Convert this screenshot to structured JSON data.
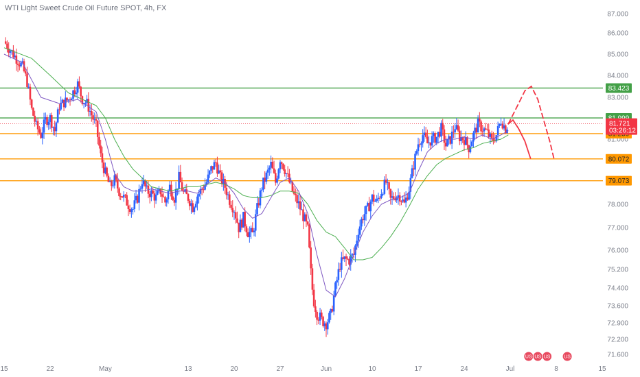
{
  "header": {
    "title": "WTI Light Sweet Crude Oil Future SPOT, 4h, FX"
  },
  "chart_data": {
    "type": "candlestick",
    "title": "WTI Light Sweet Crude Oil Future SPOT, 4h, FX",
    "ylim": [
      71.2,
      87.35
    ],
    "grid": false,
    "y_ticks": [
      "87.000",
      "86.000",
      "85.000",
      "84.000",
      "83.000",
      "82.000",
      "81.000",
      "80.000",
      "79.000",
      "78.000",
      "77.000",
      "76.000",
      "75.200",
      "74.400",
      "73.600",
      "72.900",
      "72.200",
      "71.600"
    ],
    "y_tick_values": [
      87.0,
      86.0,
      85.0,
      84.0,
      83.0,
      82.0,
      81.0,
      80.0,
      79.0,
      78.0,
      77.0,
      76.0,
      75.2,
      74.4,
      73.6,
      72.9,
      72.2,
      71.6
    ],
    "x_ticks": [
      {
        "label": "15",
        "x": 0
      },
      {
        "label": "22",
        "x": 5
      },
      {
        "label": "May",
        "x": 11
      },
      {
        "label": "13",
        "x": 20
      },
      {
        "label": "20",
        "x": 25
      },
      {
        "label": "27",
        "x": 30
      },
      {
        "label": "Jun",
        "x": 35
      },
      {
        "label": "10",
        "x": 40
      },
      {
        "label": "17",
        "x": 45
      },
      {
        "label": "24",
        "x": 50
      },
      {
        "label": "Jul",
        "x": 55
      },
      {
        "label": "8",
        "x": 60
      },
      {
        "label": "15",
        "x": 65
      }
    ],
    "colors": {
      "up": "#2962ff",
      "down": "#f23645",
      "ma_fast": "#7e57c2",
      "ma_slow": "#4caf50",
      "support": "#ff9800",
      "resistance": "#43a047",
      "projection": "#f23645"
    },
    "levels": [
      {
        "name": "resistance-high",
        "value": 83.423,
        "label": "83.423",
        "color": "#43a047"
      },
      {
        "name": "resistance-low",
        "value": 81.999,
        "label": "81.999",
        "color": "#43a047"
      },
      {
        "name": "support-1",
        "value": 81.259,
        "label": "81.259",
        "color": "#ff9800"
      },
      {
        "name": "support-2",
        "value": 80.072,
        "label": "80.072",
        "color": "#ff9800"
      },
      {
        "name": "support-3",
        "value": 79.073,
        "label": "79.073",
        "color": "#ff9800"
      }
    ],
    "current_price": {
      "value": 81.721,
      "label": "81.721",
      "countdown": "03:26:12"
    },
    "price_path": [
      [
        0,
        85.6
      ],
      [
        1,
        85.0
      ],
      [
        2,
        84.4
      ],
      [
        2.5,
        83.7
      ],
      [
        3,
        82.4
      ],
      [
        3.5,
        81.6
      ],
      [
        4,
        81.2
      ],
      [
        4.5,
        81.9
      ],
      [
        5,
        82.0
      ],
      [
        5.5,
        81.4
      ],
      [
        6,
        82.6
      ],
      [
        7,
        82.9
      ],
      [
        8,
        83.6
      ],
      [
        8.5,
        82.9
      ],
      [
        9,
        82.7
      ],
      [
        10,
        81.6
      ],
      [
        10.5,
        80.2
      ],
      [
        11,
        79.4
      ],
      [
        11.5,
        78.8
      ],
      [
        12,
        79.1
      ],
      [
        12.5,
        78.6
      ],
      [
        13,
        78.3
      ],
      [
        13.5,
        78.0
      ],
      [
        14,
        77.8
      ],
      [
        14.5,
        78.3
      ],
      [
        15,
        79.1
      ],
      [
        15.5,
        78.6
      ],
      [
        16,
        78.5
      ],
      [
        16.5,
        78.3
      ],
      [
        17,
        78.6
      ],
      [
        17.5,
        78.1
      ],
      [
        18,
        78.8
      ],
      [
        18.5,
        78.3
      ],
      [
        19,
        79.2
      ],
      [
        19.5,
        78.5
      ],
      [
        20,
        78.3
      ],
      [
        20.5,
        77.9
      ],
      [
        21,
        78.4
      ],
      [
        22,
        79.0
      ],
      [
        22.5,
        79.6
      ],
      [
        23,
        79.9
      ],
      [
        23.5,
        79.2
      ],
      [
        24,
        78.8
      ],
      [
        24.5,
        78.2
      ],
      [
        25,
        77.8
      ],
      [
        25.5,
        77.0
      ],
      [
        26,
        77.4
      ],
      [
        26.5,
        76.8
      ],
      [
        27,
        76.7
      ],
      [
        27.5,
        77.8
      ],
      [
        28,
        78.8
      ],
      [
        28.5,
        79.3
      ],
      [
        29,
        79.8
      ],
      [
        29.5,
        79.0
      ],
      [
        30,
        80.1
      ],
      [
        30.5,
        79.6
      ],
      [
        31,
        79.0
      ],
      [
        31.5,
        78.4
      ],
      [
        32,
        78.0
      ],
      [
        32.5,
        77.5
      ],
      [
        33,
        76.9
      ],
      [
        33.3,
        75.2
      ],
      [
        33.6,
        73.9
      ],
      [
        34,
        73.3
      ],
      [
        34.5,
        73.0
      ],
      [
        35,
        72.9
      ],
      [
        35.5,
        73.2
      ],
      [
        36,
        74.4
      ],
      [
        36.5,
        75.4
      ],
      [
        37,
        75.6
      ],
      [
        37.5,
        75.6
      ],
      [
        38,
        75.8
      ],
      [
        38.5,
        76.9
      ],
      [
        39,
        77.5
      ],
      [
        39.5,
        77.8
      ],
      [
        40,
        78.3
      ],
      [
        40.5,
        78.1
      ],
      [
        41,
        78.6
      ],
      [
        41.5,
        79.0
      ],
      [
        42,
        78.2
      ],
      [
        42.5,
        78.4
      ],
      [
        43,
        78.4
      ],
      [
        43.5,
        78.0
      ],
      [
        44,
        78.7
      ],
      [
        44.5,
        79.8
      ],
      [
        45,
        80.8
      ],
      [
        45.5,
        81.2
      ],
      [
        46,
        80.8
      ],
      [
        46.5,
        81.0
      ],
      [
        47,
        81.1
      ],
      [
        47.5,
        81.5
      ],
      [
        48,
        80.7
      ],
      [
        48.5,
        81.0
      ],
      [
        49,
        81.6
      ],
      [
        49.5,
        81.1
      ],
      [
        50,
        81.0
      ],
      [
        50.5,
        80.6
      ],
      [
        51,
        81.2
      ],
      [
        51.5,
        81.7
      ],
      [
        52,
        81.5
      ],
      [
        52.5,
        81.3
      ],
      [
        53,
        80.9
      ],
      [
        53.5,
        81.2
      ],
      [
        54,
        81.9
      ],
      [
        54.5,
        81.5
      ],
      [
        54.8,
        81.72
      ]
    ],
    "ma_fast": [
      [
        0,
        85.0
      ],
      [
        2,
        84.6
      ],
      [
        4,
        83.0
      ],
      [
        6,
        82.7
      ],
      [
        8,
        82.9
      ],
      [
        10,
        82.3
      ],
      [
        11,
        81.0
      ],
      [
        12,
        79.4
      ],
      [
        13,
        78.8
      ],
      [
        14,
        78.6
      ],
      [
        15,
        78.6
      ],
      [
        16,
        78.7
      ],
      [
        17,
        78.6
      ],
      [
        18,
        78.5
      ],
      [
        19,
        78.6
      ],
      [
        20,
        78.6
      ],
      [
        21,
        78.5
      ],
      [
        22,
        78.9
      ],
      [
        23,
        79.2
      ],
      [
        24,
        79.0
      ],
      [
        25,
        78.5
      ],
      [
        26,
        77.8
      ],
      [
        27,
        77.4
      ],
      [
        28,
        77.6
      ],
      [
        29,
        78.3
      ],
      [
        30,
        79.0
      ],
      [
        31,
        79.2
      ],
      [
        32,
        78.6
      ],
      [
        33,
        77.6
      ],
      [
        34,
        75.8
      ],
      [
        35,
        74.3
      ],
      [
        36,
        74.0
      ],
      [
        37,
        74.8
      ],
      [
        38,
        75.8
      ],
      [
        39,
        76.8
      ],
      [
        40,
        77.5
      ],
      [
        41,
        78.0
      ],
      [
        42,
        78.2
      ],
      [
        43,
        78.3
      ],
      [
        44,
        78.5
      ],
      [
        45,
        79.5
      ],
      [
        46,
        80.4
      ],
      [
        47,
        80.8
      ],
      [
        48,
        81.0
      ],
      [
        49,
        81.0
      ],
      [
        50,
        81.1
      ],
      [
        51,
        81.0
      ],
      [
        52,
        81.2
      ],
      [
        53,
        81.0
      ],
      [
        54,
        81.2
      ],
      [
        54.8,
        81.4
      ]
    ],
    "ma_slow": [
      [
        0,
        85.3
      ],
      [
        3,
        84.8
      ],
      [
        5,
        84.0
      ],
      [
        7,
        83.2
      ],
      [
        9,
        82.8
      ],
      [
        10,
        82.6
      ],
      [
        11,
        82.0
      ],
      [
        12,
        81.0
      ],
      [
        13,
        80.2
      ],
      [
        14,
        79.6
      ],
      [
        15,
        79.2
      ],
      [
        16,
        78.8
      ],
      [
        17,
        78.7
      ],
      [
        18,
        78.6
      ],
      [
        19,
        78.7
      ],
      [
        20,
        78.8
      ],
      [
        21,
        78.8
      ],
      [
        22,
        78.9
      ],
      [
        23,
        79.0
      ],
      [
        24,
        78.9
      ],
      [
        25,
        78.7
      ],
      [
        26,
        78.4
      ],
      [
        27,
        78.3
      ],
      [
        28,
        78.3
      ],
      [
        29,
        78.4
      ],
      [
        30,
        78.6
      ],
      [
        31,
        78.6
      ],
      [
        32,
        78.5
      ],
      [
        33,
        78.0
      ],
      [
        34,
        77.3
      ],
      [
        35,
        76.8
      ],
      [
        36,
        76.6
      ],
      [
        37,
        76.1
      ],
      [
        38,
        75.6
      ],
      [
        39,
        75.6
      ],
      [
        40,
        75.7
      ],
      [
        41,
        76.1
      ],
      [
        42,
        76.6
      ],
      [
        43,
        77.2
      ],
      [
        44,
        77.9
      ],
      [
        45,
        78.7
      ],
      [
        46,
        79.3
      ],
      [
        47,
        79.8
      ],
      [
        48,
        80.1
      ],
      [
        49,
        80.3
      ],
      [
        50,
        80.5
      ],
      [
        51,
        80.6
      ],
      [
        52,
        80.8
      ],
      [
        53,
        80.9
      ],
      [
        54,
        81.0
      ],
      [
        54.8,
        81.2
      ]
    ],
    "projection_solid": [
      [
        54.8,
        81.72
      ],
      [
        55.3,
        81.9
      ],
      [
        55.9,
        81.5
      ],
      [
        56.6,
        80.9
      ],
      [
        57.2,
        80.1
      ]
    ],
    "projection_dashed": [
      [
        54.8,
        81.72
      ],
      [
        55.8,
        82.6
      ],
      [
        56.6,
        83.3
      ],
      [
        57.3,
        83.5
      ],
      [
        58.0,
        82.9
      ],
      [
        58.7,
        81.8
      ],
      [
        59.3,
        80.9
      ],
      [
        59.8,
        80.0
      ]
    ],
    "events": [
      {
        "label": "US",
        "x": 57.0
      },
      {
        "label": "US",
        "x": 58.0
      },
      {
        "label": "US",
        "x": 59.0
      },
      {
        "label": "US",
        "x": 61.2
      }
    ]
  }
}
